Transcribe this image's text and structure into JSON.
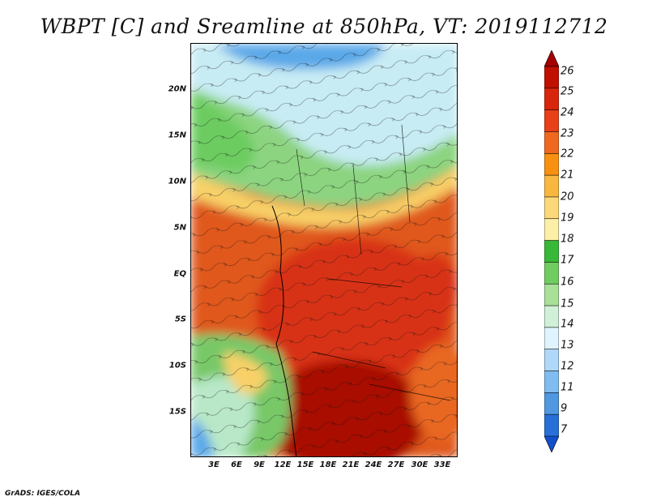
{
  "title": "WBPT [C] and Sreamline at 850hPa, VT: 2019112712",
  "credit": "GrADS: IGES/COLA",
  "map": {
    "lat_labels": [
      "20N",
      "15N",
      "10N",
      "5N",
      "EQ",
      "5S",
      "10S",
      "15S"
    ],
    "lon_labels": [
      "3E",
      "6E",
      "9E",
      "12E",
      "15E",
      "18E",
      "21E",
      "24E",
      "27E",
      "30E",
      "33E"
    ]
  },
  "colorbar": {
    "labels": [
      "26",
      "25",
      "24",
      "23",
      "22",
      "21",
      "20",
      "19",
      "18",
      "17",
      "16",
      "15",
      "14",
      "13",
      "12",
      "11",
      "9",
      "7"
    ],
    "colors": [
      "#a50000",
      "#c01000",
      "#d8260c",
      "#e84018",
      "#f06820",
      "#f89010",
      "#f8b840",
      "#fcd878",
      "#fcf0a8",
      "#38b838",
      "#70cc60",
      "#a8e098",
      "#d0f0d8",
      "#e0f4ff",
      "#b0d8f8",
      "#80bcf0",
      "#5098e0",
      "#2870d8",
      "#1050c8"
    ]
  }
}
